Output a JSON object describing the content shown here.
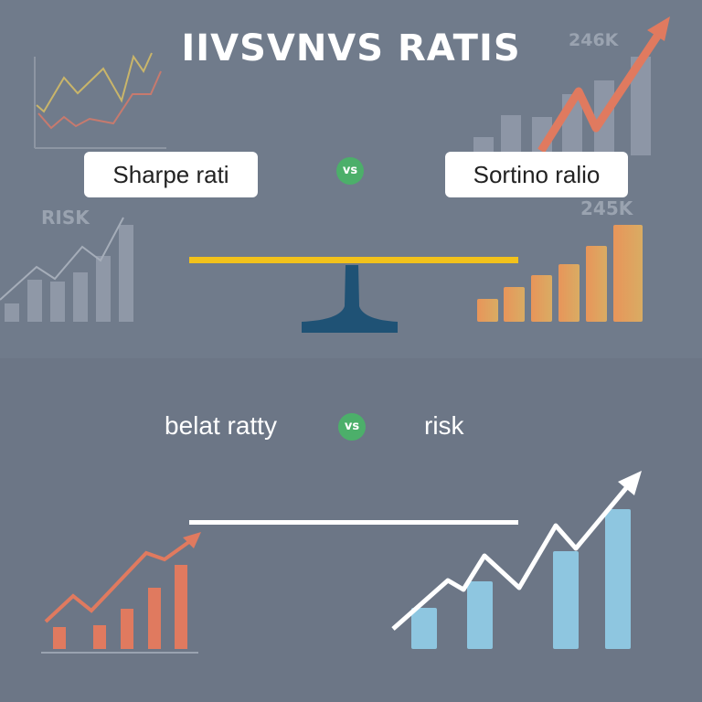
{
  "title": "IIVSVNVS RATIS",
  "top": {
    "left_label": "Sharpe rati",
    "vs": "vs",
    "right_label": "Sortino ralio",
    "value_top": "246K",
    "value_mid": "245K",
    "risk_label": "RISK"
  },
  "bottom": {
    "left_label": "belat ratty",
    "vs": "vs",
    "right_label": "risk"
  },
  "colors": {
    "accent_green": "#4caf6a",
    "seesaw_bar": "#f2c21b",
    "seesaw_stand": "#1f5275",
    "orange": "#e07a5f",
    "blue": "#8ec6e0"
  }
}
